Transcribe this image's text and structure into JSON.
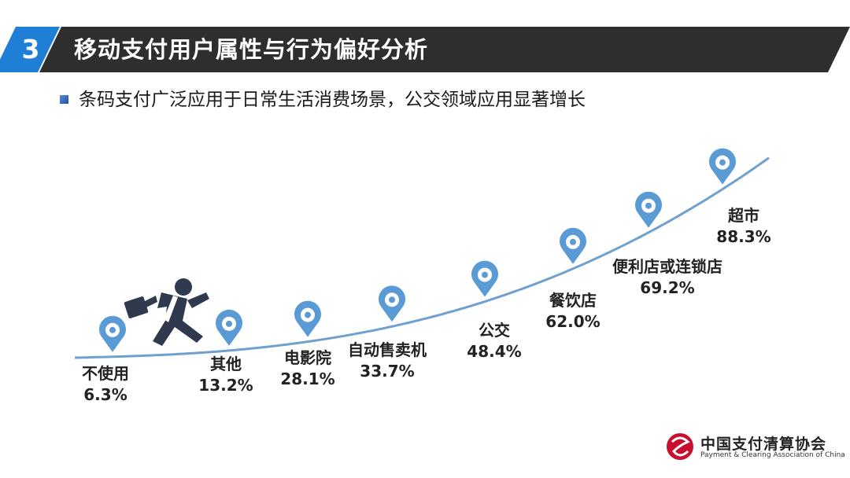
{
  "header": {
    "section_number": "3",
    "title": "移动支付用户属性与行为偏好分析"
  },
  "subtitle": "条码支付广泛应用于日常生活消费场景，公交领域应用显著增长",
  "logo": {
    "name_cn": "中国支付清算协会",
    "name_en": "Payment & Clearing Association of China"
  },
  "colors": {
    "header_dark": "#2e2e2e",
    "header_blue": "#1f7fd6",
    "pin": "#5b9bd5",
    "curve": "#6fa0cf",
    "label_text": "#222222",
    "figure": "#2f3a4f"
  },
  "chart_data": {
    "type": "line",
    "title": "",
    "xlabel": "",
    "ylabel": "",
    "ylim": [
      0,
      100
    ],
    "categories": [
      "不使用",
      "其他",
      "电影院",
      "自动售卖机",
      "公交",
      "餐饮店",
      "便利店或连锁店",
      "超市"
    ],
    "value_labels": [
      "6.3%",
      "13.2%",
      "28.1%",
      "33.7%",
      "48.4%",
      "62.0%",
      "69.2%",
      "88.3%"
    ],
    "values": [
      6.3,
      13.2,
      28.1,
      33.7,
      48.4,
      62.0,
      69.2,
      88.3
    ],
    "grid": false,
    "legend": "none",
    "decoration": "running-businessman-icon"
  }
}
